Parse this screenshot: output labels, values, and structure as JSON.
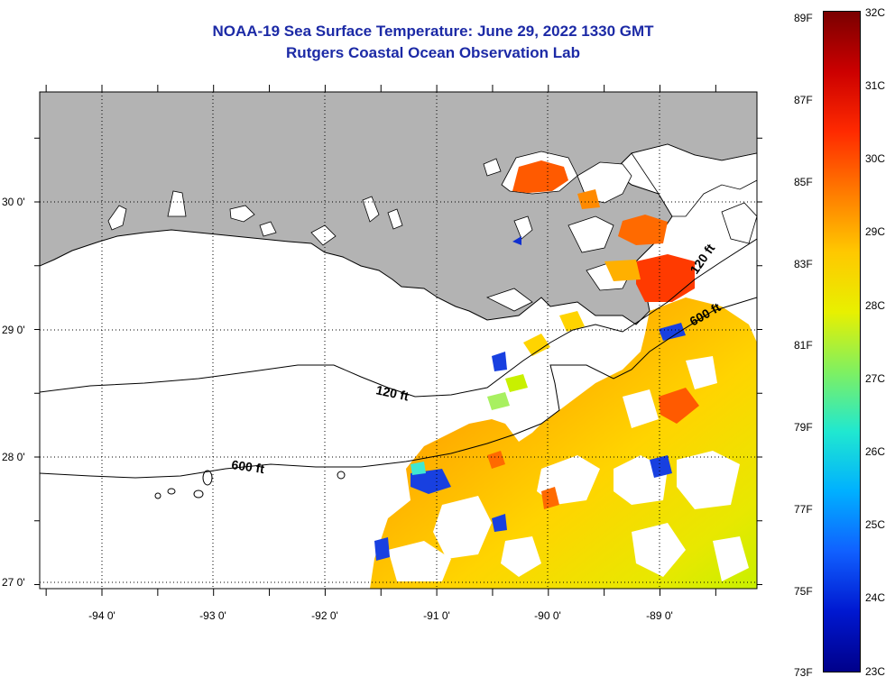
{
  "header": {
    "title": "NOAA-19 Sea Surface Temperature:  June 29, 2022 1330 GMT",
    "subtitle": "Rutgers Coastal Ocean Observation Lab"
  },
  "map": {
    "lat_labels": [
      "30 0'",
      "29 0'",
      "28 0'",
      "27 0'"
    ],
    "lon_labels": [
      "-94 0'",
      "-93 0'",
      "-92 0'",
      "-91 0'",
      "-90 0'",
      "-89 0'"
    ],
    "contour_labels": {
      "c120_west": "120 ft",
      "c600_west": "600 ft",
      "c120_east": "120 ft",
      "c600_east": "600 ft"
    },
    "colors": {
      "land": "#b3b3b3",
      "ocean_nodata": "#ffffff",
      "title": "#1c2aa6"
    }
  },
  "colorbar": {
    "fahrenheit_labels": [
      "89F",
      "87F",
      "85F",
      "83F",
      "81F",
      "79F",
      "77F",
      "75F",
      "73F"
    ],
    "celsius_labels": [
      "32C",
      "31C",
      "30C",
      "29C",
      "28C",
      "27C",
      "26C",
      "25C",
      "24C",
      "23C"
    ],
    "colors_top_to_bottom": [
      "#7a0000",
      "#cc0000",
      "#ff2a00",
      "#ff7a00",
      "#ffc800",
      "#e8f000",
      "#80f060",
      "#20e8d0",
      "#00b0ff",
      "#1060ff",
      "#0018d0",
      "#00008a"
    ]
  }
}
